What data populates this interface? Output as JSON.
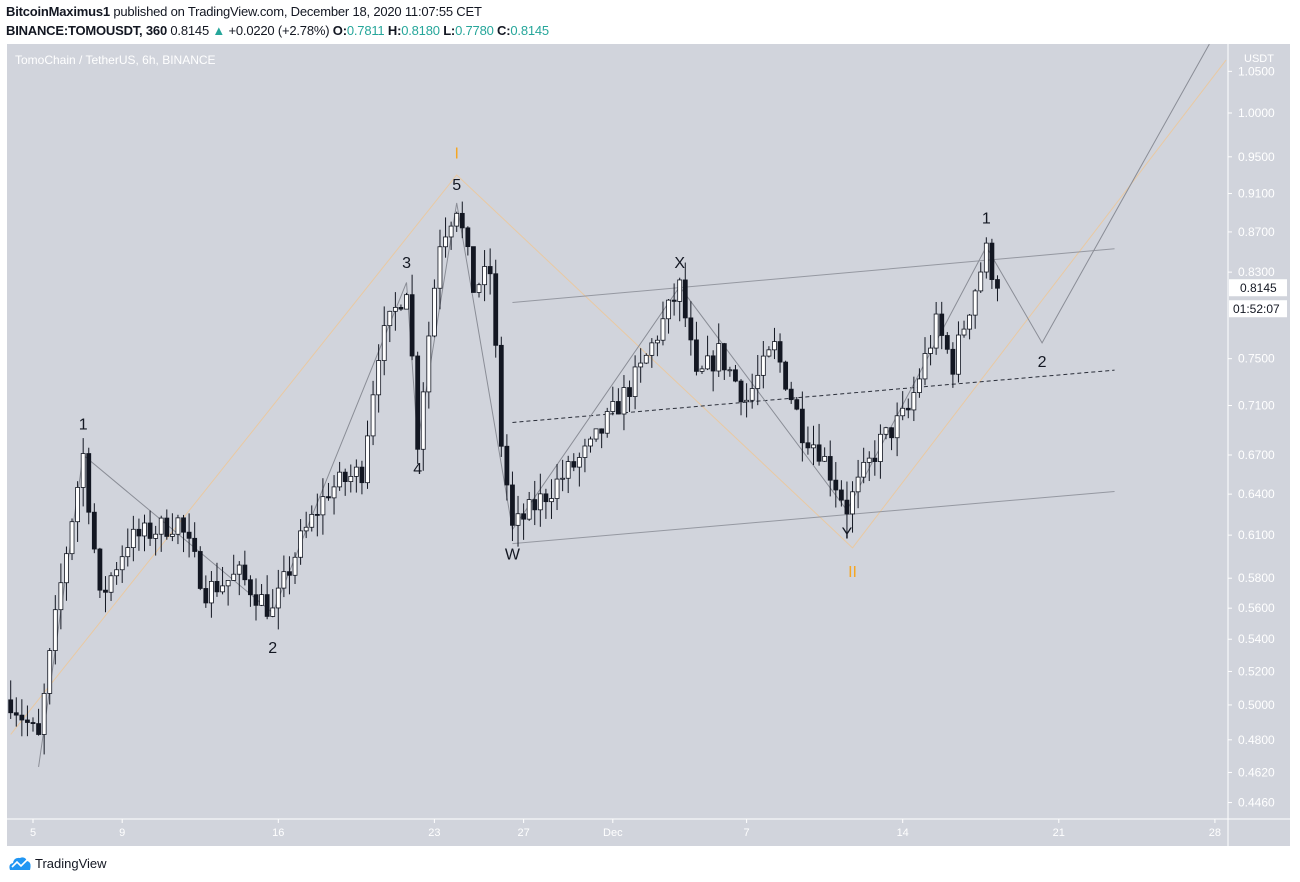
{
  "header": {
    "author": "BitcoinMaximus1",
    "published": "published on TradingView.com, December 18, 2020 11:07:55 CET",
    "symbol": "BINANCE:TOMOUSDT, 360",
    "last": "0.8145",
    "change": "+0.0220 (+2.78%)",
    "o_label": "O:",
    "o": "0.7811",
    "h_label": "H:",
    "h": "0.8180",
    "l_label": "L:",
    "l": "0.7780",
    "c_label": "C:",
    "c": "0.8145"
  },
  "watermark": {
    "label": "TradingView",
    "icon": "tradingview-cloud-icon"
  },
  "colors": {
    "bg": "#d1d4dc",
    "axis_text": "#ffffff",
    "up_body": "#ffffff",
    "down_body": "#131722",
    "wave": "#8a8d96",
    "orange": "#f5a623",
    "orange_line": "#e9c9a2",
    "green": "#26a69a"
  },
  "chart_data": {
    "type": "candlestick",
    "title": "TomoChain / TetherUS, 6h, BINANCE",
    "currency_label": "USDT",
    "y_scale": "log",
    "ylim": [
      0.435,
      1.09
    ],
    "xlim": [
      "2020-11-03T18:00",
      "2020-12-29T12:00"
    ],
    "grid": false,
    "x_ticks": [
      {
        "label": "5",
        "date": "2020-11-05T00:00"
      },
      {
        "label": "9",
        "date": "2020-11-09T00:00"
      },
      {
        "label": "16",
        "date": "2020-11-16T00:00"
      },
      {
        "label": "23",
        "date": "2020-11-23T00:00"
      },
      {
        "label": "27",
        "date": "2020-11-27T00:00"
      },
      {
        "label": "Dec",
        "date": "2020-12-01T00:00"
      },
      {
        "label": "7",
        "date": "2020-12-07T00:00"
      },
      {
        "label": "14",
        "date": "2020-12-14T00:00"
      },
      {
        "label": "21",
        "date": "2020-12-21T00:00"
      },
      {
        "label": "28",
        "date": "2020-12-28T00:00"
      }
    ],
    "y_ticks": [
      "1.0500",
      "1.0000",
      "0.9500",
      "0.9100",
      "0.8700",
      "0.8300",
      "0.7500",
      "0.7100",
      "0.6700",
      "0.6400",
      "0.6100",
      "0.5800",
      "0.5600",
      "0.5400",
      "0.5200",
      "0.5000",
      "0.4800",
      "0.4620",
      "0.4460"
    ],
    "last_price": "0.8145",
    "countdown": "01:52:07",
    "price_path": [
      [
        "2020-11-04T00:00",
        0.503
      ],
      [
        "2020-11-05T06:00",
        0.48
      ],
      [
        "2020-11-06T00:00",
        0.552
      ],
      [
        "2020-11-07T06:00",
        0.67
      ],
      [
        "2020-11-08T00:00",
        0.565
      ],
      [
        "2020-11-09T06:00",
        0.606
      ],
      [
        "2020-11-11T12:00",
        0.62
      ],
      [
        "2020-11-12T18:00",
        0.572
      ],
      [
        "2020-11-14T06:00",
        0.582
      ],
      [
        "2020-11-15T18:00",
        0.557
      ],
      [
        "2020-11-17T00:00",
        0.606
      ],
      [
        "2020-11-18T06:00",
        0.643
      ],
      [
        "2020-11-19T18:00",
        0.658
      ],
      [
        "2020-11-20T12:00",
        0.758
      ],
      [
        "2020-11-21T18:00",
        0.818
      ],
      [
        "2020-11-22T06:00",
        0.682
      ],
      [
        "2020-11-23T06:00",
        0.862
      ],
      [
        "2020-11-24T00:00",
        0.898
      ],
      [
        "2020-11-24T18:00",
        0.815
      ],
      [
        "2020-11-25T12:00",
        0.83
      ],
      [
        "2020-11-26T00:00",
        0.68
      ],
      [
        "2020-11-26T12:00",
        0.614
      ],
      [
        "2020-11-28T00:00",
        0.64
      ],
      [
        "2020-11-30T00:00",
        0.675
      ],
      [
        "2020-12-02T06:00",
        0.74
      ],
      [
        "2020-12-04T00:00",
        0.815
      ],
      [
        "2020-12-04T18:00",
        0.73
      ],
      [
        "2020-12-05T18:00",
        0.755
      ],
      [
        "2020-12-07T00:00",
        0.715
      ],
      [
        "2020-12-08T06:00",
        0.76
      ],
      [
        "2020-12-09T12:00",
        0.69
      ],
      [
        "2020-12-10T06:00",
        0.675
      ],
      [
        "2020-12-11T12:00",
        0.63
      ],
      [
        "2020-12-13T00:00",
        0.68
      ],
      [
        "2020-12-14T06:00",
        0.705
      ],
      [
        "2020-12-15T12:00",
        0.78
      ],
      [
        "2020-12-16T06:00",
        0.745
      ],
      [
        "2020-12-17T18:00",
        0.85
      ],
      [
        "2020-12-18T06:00",
        0.8145
      ]
    ],
    "drawings": {
      "wave_path": [
        [
          "2020-11-05T06:00",
          0.465
        ],
        [
          "2020-11-07T06:00",
          0.67
        ],
        [
          "2020-11-15T18:00",
          0.557
        ],
        [
          "2020-11-21T18:00",
          0.82
        ],
        [
          "2020-11-22T06:00",
          0.68
        ],
        [
          "2020-11-24T00:00",
          0.9
        ],
        [
          "2020-11-26T12:00",
          0.614
        ],
        [
          "2020-12-04T00:00",
          0.816
        ],
        [
          "2020-12-11T12:00",
          0.628
        ],
        [
          "2020-12-17T18:00",
          0.855
        ],
        [
          "2020-12-20T06:00",
          0.764
        ],
        [
          "2020-12-27T18:00",
          1.084
        ]
      ],
      "orange_path": [
        [
          "2020-11-04T00:00",
          0.483
        ],
        [
          "2020-11-24T00:00",
          0.93
        ],
        [
          "2020-12-11T18:00",
          0.601
        ],
        [
          "2020-12-28T12:00",
          1.064
        ]
      ],
      "channel_top": [
        [
          "2020-11-26T12:00",
          0.801
        ],
        [
          "2020-12-23T12:00",
          0.853
        ]
      ],
      "channel_bottom": [
        [
          "2020-11-26T12:00",
          0.604
        ],
        [
          "2020-12-23T12:00",
          0.642
        ]
      ],
      "channel_mid_dashed": [
        [
          "2020-11-26T12:00",
          0.696
        ],
        [
          "2020-12-23T12:00",
          0.74
        ]
      ]
    },
    "wave_labels": [
      {
        "text": "1",
        "date": "2020-11-07T06:00",
        "price": 0.695,
        "color": "dark"
      },
      {
        "text": "2",
        "date": "2020-11-15T18:00",
        "price": 0.535,
        "color": "dark"
      },
      {
        "text": "3",
        "date": "2020-11-21T18:00",
        "price": 0.84,
        "color": "dark"
      },
      {
        "text": "4",
        "date": "2020-11-22T06:00",
        "price": 0.66,
        "color": "dark"
      },
      {
        "text": "5",
        "date": "2020-11-24T00:00",
        "price": 0.92,
        "color": "dark"
      },
      {
        "text": "I",
        "date": "2020-11-24T00:00",
        "price": 0.955,
        "color": "orange"
      },
      {
        "text": "W",
        "date": "2020-11-26T12:00",
        "price": 0.597,
        "color": "dark"
      },
      {
        "text": "X",
        "date": "2020-12-04T00:00",
        "price": 0.84,
        "color": "dark"
      },
      {
        "text": "Y",
        "date": "2020-12-11T12:00",
        "price": 0.612,
        "color": "dark"
      },
      {
        "text": "II",
        "date": "2020-12-11T18:00",
        "price": 0.585,
        "color": "orange"
      },
      {
        "text": "1",
        "date": "2020-12-17T18:00",
        "price": 0.885,
        "color": "dark"
      },
      {
        "text": "2",
        "date": "2020-12-20T06:00",
        "price": 0.748,
        "color": "dark"
      }
    ]
  }
}
